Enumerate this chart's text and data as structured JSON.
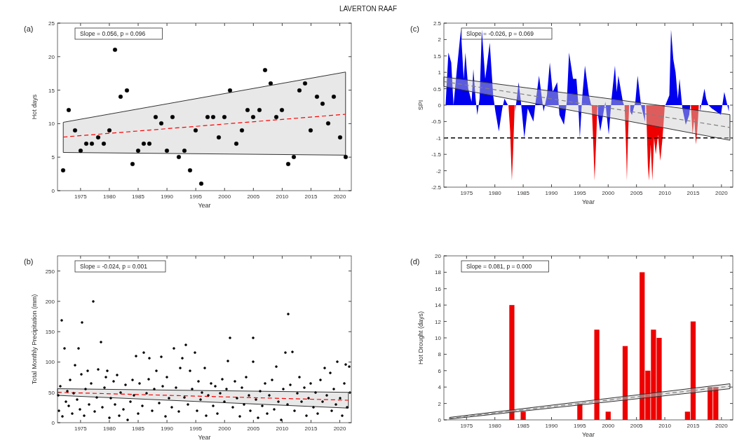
{
  "chart_data": [
    {
      "type": "scatter",
      "title": "LAVERTON RAAF",
      "subtitle": "(a)",
      "xlabel": "Year",
      "ylabel": "Hot days",
      "annotations": [
        "Slope = 0.056, p = 0.096"
      ],
      "xlim": [
        1971,
        2022
      ],
      "xticks": [
        1975,
        1980,
        1985,
        1990,
        1995,
        2000,
        2005,
        2010,
        2015,
        2020
      ],
      "ylim": [
        0,
        25
      ],
      "yticks": [
        0,
        5,
        10,
        15,
        20,
        25
      ],
      "series": [
        {
          "type": "line",
          "color": "#ff0000",
          "line_style": "dashed",
          "x": [
            1972,
            2021
          ],
          "values": [
            8,
            11.4
          ],
          "lower": [
            5.7,
            5.3
          ],
          "upper": [
            10.2,
            17.7
          ]
        },
        {
          "color": "#000000",
          "marker": "circle",
          "x": [
            1972,
            1973,
            1974,
            1975,
            1976,
            1977,
            1978,
            1979,
            1980,
            1981,
            1982,
            1983,
            1984,
            1985,
            1986,
            1987,
            1988,
            1989,
            1990,
            1991,
            1992,
            1993,
            1994,
            1995,
            1996,
            1997,
            1998,
            1999,
            2000,
            2001,
            2002,
            2003,
            2004,
            2005,
            2006,
            2007,
            2008,
            2009,
            2010,
            2011,
            2012,
            2013,
            2014,
            2015,
            2016,
            2017,
            2018,
            2019,
            2020,
            2021
          ],
          "values": [
            3,
            12,
            9,
            6,
            7,
            7,
            8,
            7,
            9,
            21,
            14,
            15,
            4,
            6,
            7,
            7,
            11,
            10,
            6,
            11,
            5,
            6,
            3,
            9,
            1,
            11,
            11,
            8,
            11,
            15,
            7,
            9,
            12,
            11,
            12,
            18,
            16,
            11,
            12,
            4,
            5,
            15,
            16,
            9,
            14,
            13,
            10,
            14,
            8,
            5
          ]
        }
      ]
    },
    {
      "type": "area",
      "subtitle": "(c)",
      "xlabel": "Year",
      "ylabel": "SPI",
      "annotations": [
        "Slope = -0.026, p = 0.069"
      ],
      "xlim": [
        1971,
        2022
      ],
      "xticks": [
        1975,
        1980,
        1985,
        1990,
        1995,
        2000,
        2005,
        2010,
        2015,
        2020
      ],
      "ylim": [
        -2.5,
        2.5
      ],
      "yticks": [
        -2.5,
        -2,
        -1.5,
        -1,
        -0.5,
        0,
        0.5,
        1,
        1.5,
        2,
        2.5
      ],
      "ref_lines": [
        {
          "axis": "y",
          "value": -1,
          "color": "#000000",
          "line_style": "dashed"
        }
      ],
      "series": [
        {
          "color": "#0000ee",
          "x": [
            1971.3,
            1971.8,
            1972.3,
            1972.7,
            1973.3,
            1974,
            1974.5,
            1974.8,
            1975.3,
            1975.9,
            1976.2,
            1976.6,
            1976.9,
            1977.3,
            1977.7,
            1978.3,
            1979.1,
            1979.7,
            1980.1,
            1980.7,
            1981.3,
            1981.7,
            1982.3,
            1983,
            1983.6,
            1984.2,
            1984.6,
            1985.2,
            1985.8,
            1986.8,
            1987.2,
            1987.8,
            1988.6,
            1989.2,
            1989.7,
            1990.2,
            1991,
            1991.4,
            1992.2,
            1992.7,
            1993.1,
            1993.8,
            1994.4,
            1994.7,
            1995,
            1995.4,
            1995.9,
            1996.6,
            1997,
            1997.6,
            1998.2,
            1998.6,
            1999.5,
            2000.1,
            2000.6,
            2001.2,
            2001.5,
            2001.8,
            2002.6,
            2002.8,
            2003.3,
            2003.9,
            2004.2,
            2004.8,
            2005.2,
            2005.8,
            2006.5,
            2008,
            2010.1,
            2010.8,
            2011.1,
            2011.5,
            2011.9,
            2012.3,
            2012.6,
            2013.1,
            2013.7,
            2014.3,
            2014.5,
            2015.3,
            2016.2,
            2017,
            2017.3,
            2017.7,
            2018.3,
            2019.1,
            2019.9,
            2020.5,
            2021.3
          ],
          "values": [
            0,
            1.6,
            1.3,
            0,
            1.1,
            2.3,
            0.8,
            1.6,
            0.5,
            0.1,
            1.1,
            0.2,
            -0.3,
            0.2,
            2.3,
            0.8,
            1.9,
            0.3,
            -0.2,
            -0.8,
            -0.1,
            0.2,
            0,
            null,
            -0.2,
            0.7,
            0.1,
            -1,
            -0.1,
            -0.5,
            0.1,
            0.9,
            -0.2,
            0.3,
            1.3,
            0.4,
            0.7,
            -0.3,
            -0.6,
            0.1,
            1.6,
            0.8,
            0.8,
            0.1,
            -1,
            0.2,
            1.2,
            0.3,
            0,
            null,
            -0.3,
            -0.8,
            0.1,
            -0.9,
            0.2,
            1.2,
            0.4,
            0.9,
            0.1,
            0,
            null,
            -0.2,
            -0.3,
            0.1,
            0.9,
            0,
            -0.5,
            null,
            0,
            0.3,
            2.3,
            1.4,
            1,
            0.2,
            0.8,
            -0.1,
            -0.6,
            -0.3,
            0,
            null,
            -0.2,
            0.5,
            0.2,
            0,
            -0.1,
            -0.2,
            -0.3,
            0.4,
            -0.2
          ]
        },
        {
          "color": "#ee0000",
          "x": [
            1982.4,
            1982.7,
            1983,
            1983.2,
            1983.5,
            1990,
            1997.1,
            1997.4,
            1997.6,
            1997.9,
            1998.1,
            2000,
            2002.9,
            2003.2,
            2003.3,
            2003.5,
            2003.7,
            2005,
            2006.7,
            2007,
            2007.2,
            2007.5,
            2007.8,
            2008.1,
            2008.4,
            2008.8,
            2009.2,
            2009.6,
            2010,
            2012,
            2014.6,
            2014.9,
            2015.2,
            2015.5,
            2015.8,
            2016
          ],
          "values": [
            0,
            -0.8,
            -2.3,
            -1.5,
            0,
            null,
            0,
            -1.3,
            -2.3,
            -1,
            0,
            null,
            0,
            -1.5,
            -2.3,
            -1,
            0,
            null,
            0,
            -1.8,
            -2.3,
            -1.2,
            -2.3,
            -1,
            -1.5,
            -0.9,
            -1.7,
            -1,
            0,
            null,
            0,
            -0.9,
            -0.4,
            -1.2,
            -0.6,
            0
          ]
        },
        {
          "type": "line",
          "color": "#808080",
          "line_style": "dashed",
          "x": [
            1971,
            2021.5
          ],
          "values": [
            0.72,
            -0.68
          ],
          "lower": [
            0.57,
            -1.07
          ],
          "upper": [
            0.86,
            -0.29
          ]
        }
      ]
    },
    {
      "type": "scatter",
      "subtitle": "(b)",
      "xlabel": "Year",
      "ylabel": "Total Monthly Precipitation (mm)",
      "annotations": [
        "Slope = -0.024, p = 0.001"
      ],
      "xlim": [
        1971,
        2022
      ],
      "xticks": [
        1975,
        1980,
        1985,
        1990,
        1995,
        2000,
        2005,
        2010,
        2015,
        2020
      ],
      "ylim": [
        0,
        275
      ],
      "yticks": [
        0,
        50,
        100,
        150,
        200,
        250
      ],
      "series": [
        {
          "type": "line",
          "color": "#ff0000",
          "line_style": "dashed",
          "x": [
            1971,
            2021.5
          ],
          "values": [
            50,
            37
          ],
          "lower": [
            45,
            24
          ],
          "upper": [
            56,
            50
          ]
        },
        {
          "color": "#000000",
          "marker": "circle",
          "x": [
            1971.1,
            1971.3,
            1971.5,
            1971.7,
            1971.9,
            1972.2,
            1972.4,
            1972.7,
            1972.9,
            1973.2,
            1973.5,
            1973.8,
            1974.1,
            1974.4,
            1974.6,
            1974.9,
            1975.1,
            1975.3,
            1975.6,
            1975.9,
            1976.2,
            1976.5,
            1976.8,
            1977.2,
            1977.5,
            1977.8,
            1978.1,
            1978.5,
            1978.8,
            1979.1,
            1979.4,
            1979.7,
            1980,
            1980.3,
            1980.7,
            1981,
            1981.3,
            1981.7,
            1982,
            1982.4,
            1982.8,
            1983.2,
            1983.6,
            1984,
            1984.3,
            1984.6,
            1985,
            1985.3,
            1985.7,
            1986,
            1986.4,
            1986.8,
            1987,
            1987.4,
            1987.8,
            1988.2,
            1988.6,
            1989,
            1989.3,
            1989.7,
            1990,
            1990.4,
            1990.8,
            1991.2,
            1991.6,
            1992,
            1992.3,
            1992.7,
            1993,
            1993.3,
            1993.7,
            1994,
            1994.4,
            1994.9,
            1995.2,
            1995.5,
            1995.8,
            1996.1,
            1996.5,
            1996.8,
            1997.2,
            1997.6,
            1998,
            1998.4,
            1998.8,
            1999.2,
            1999.6,
            2000,
            2000.3,
            2000.6,
            2001,
            2001.4,
            2001.8,
            2002.2,
            2002.6,
            2003,
            2003.4,
            2003.8,
            2004.2,
            2004.5,
            2004.9,
            2005,
            2005.4,
            2005.8,
            2006.2,
            2006.6,
            2007,
            2007.4,
            2007.8,
            2008.2,
            2008.6,
            2009,
            2009.4,
            2009.8,
            2010.2,
            2010.5,
            2010.9,
            2011,
            2011.4,
            2011.8,
            2012.2,
            2012.6,
            2013,
            2013.4,
            2013.8,
            2014.2,
            2014.6,
            2015,
            2015.4,
            2015.8,
            2016.2,
            2016.6,
            2017,
            2017.4,
            2017.8,
            2018.3,
            2018.6,
            2019,
            2019.3,
            2019.6,
            2020,
            2020.4,
            2020.8,
            2021,
            2021.3,
            2021.6,
            2021.8
          ],
          "values": [
            45,
            20,
            60,
            169,
            10,
            123,
            35,
            52,
            28,
            70,
            15,
            48,
            95,
            38,
            123,
            22,
            80,
            165,
            12,
            55,
            85,
            30,
            65,
            200,
            18,
            42,
            88,
            133,
            25,
            58,
            75,
            85,
            8,
            40,
            68,
            30,
            78,
            12,
            50,
            22,
            62,
            5,
            35,
            70,
            45,
            110,
            15,
            65,
            28,
            115,
            48,
            72,
            106,
            20,
            55,
            85,
            32,
            109,
            60,
            10,
            75,
            40,
            25,
            123,
            58,
            18,
            90,
            106,
            42,
            128,
            30,
            85,
            55,
            115,
            20,
            68,
            38,
            50,
            90,
            12,
            45,
            65,
            28,
            60,
            15,
            48,
            72,
            35,
            55,
            102,
            140,
            25,
            68,
            40,
            10,
            58,
            30,
            75,
            45,
            20,
            100,
            140,
            38,
            8,
            52,
            28,
            65,
            15,
            45,
            70,
            22,
            93,
            35,
            5,
            55,
            115,
            30,
            179,
            62,
            117,
            20,
            48,
            75,
            35,
            58,
            12,
            40,
            65,
            25,
            50,
            15,
            70,
            35,
            90,
            45,
            82,
            20,
            55,
            30,
            101,
            40,
            12,
            65,
            96,
            25,
            92,
            50
          ]
        }
      ]
    },
    {
      "type": "bar",
      "subtitle": "(d)",
      "xlabel": "Year",
      "ylabel": "Hot Drought (days)",
      "annotations": [
        "Slope = 0.081, p = 0.000"
      ],
      "xlim": [
        1971,
        2022
      ],
      "xticks": [
        1975,
        1980,
        1985,
        1990,
        1995,
        2000,
        2005,
        2010,
        2015,
        2020
      ],
      "ylim": [
        0,
        20
      ],
      "yticks": [
        0,
        2,
        4,
        6,
        8,
        10,
        12,
        14,
        16,
        18,
        20
      ],
      "series": [
        {
          "color": "#ee0000",
          "x": [
            1983,
            1985,
            1995,
            1998,
            2000,
            2003,
            2006,
            2007,
            2008,
            2009,
            2014,
            2015,
            2018,
            2019
          ],
          "values": [
            14,
            1,
            2,
            11,
            1,
            9,
            18,
            6,
            11,
            10,
            1,
            12,
            4,
            4
          ]
        },
        {
          "type": "line",
          "color": "#808080",
          "line_style": "dashed",
          "x": [
            1972,
            2021.5
          ],
          "values": [
            0.2,
            4.1
          ],
          "lower": [
            0.1,
            3.8
          ],
          "upper": [
            0.3,
            4.4
          ]
        }
      ]
    }
  ]
}
